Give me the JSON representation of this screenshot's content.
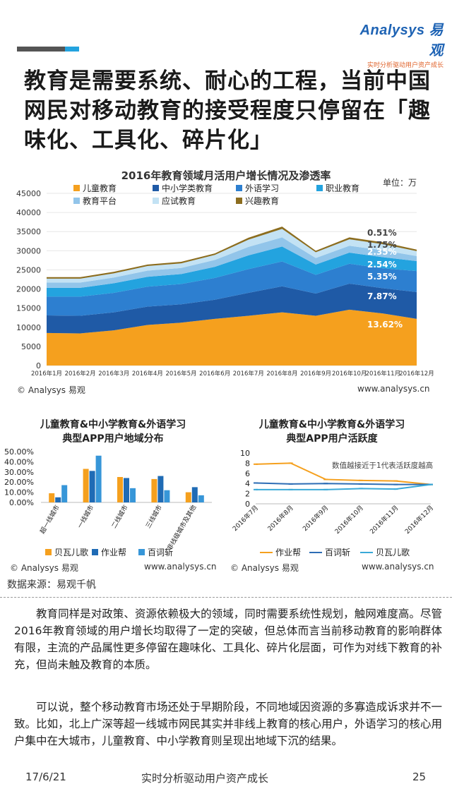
{
  "brand": {
    "logo": "Analysys 易观",
    "tagline": "实时分析驱动用户资产成长"
  },
  "title": "教育是需要系统、耐心的工程，当前中国网民对移动教育的接受程度只停留在「趣味化、工具化、碎片化」",
  "chart1": {
    "unit_label": "单位：万",
    "source_left": "© Analysys 易观",
    "source_right": "www.analysys.cn"
  },
  "chart2": {
    "title_line1": "儿童教育&中小学教育&外语学习",
    "title_line2": "典型APP用户地域分布",
    "source_left": "© Analysys 易观",
    "source_right": "www.analysys.cn"
  },
  "chart3": {
    "title_line1": "儿童教育&中小学教育&外语学习",
    "title_line2": "典型APP用户活跃度",
    "source_left": "© Analysys 易观",
    "source_right": "www.analysys.cn"
  },
  "data_source": "数据来源：易观千帆",
  "paragraphs": [
    "教育同样是对政策、资源依赖极大的领域，同时需要系统性规划，触网难度高。尽管2016年教育领域的用户增长均取得了一定的突破，但总体而言当前移动教育的影响群体有限，主流的产品属性更多停留在趣味化、工具化、碎片化层面，可作为对线下教育的补充，但尚未触及教育的本质。",
    "可以说，整个移动教育市场还处于早期阶段，不同地域因资源的多寡造成诉求并不一致。比如，北上广深等超一线城市网民其实并非线上教育的核心用户，外语学习的核心用户集中在大城市，儿童教育、中小学教育则呈现出地域下沉的结果。"
  ],
  "footer": {
    "date": "17/6/21",
    "center": "实时分析驱动用户资产成长",
    "page": "25"
  },
  "chart_data": [
    {
      "type": "area",
      "title": "2016年教育领域月活用户增长情况及渗透率",
      "x": [
        "2016年1月",
        "2016年2月",
        "2016年3月",
        "2016年4月",
        "2016年5月",
        "2016年6月",
        "2016年7月",
        "2016年8月",
        "2016年9月",
        "2016年10月",
        "2016年11月",
        "2016年12月"
      ],
      "ylim": [
        0,
        45000
      ],
      "yticks": [
        0,
        5000,
        10000,
        15000,
        20000,
        25000,
        30000,
        35000,
        40000,
        45000
      ],
      "stacked": true,
      "legend_position": "top",
      "series": [
        {
          "name": "儿童教育",
          "color": "#f5a01e",
          "values": [
            8500,
            8400,
            9200,
            10600,
            11200,
            12200,
            13000,
            13900,
            13000,
            14600,
            13600,
            12200
          ]
        },
        {
          "name": "中小学类教育",
          "color": "#1f5aa6",
          "values": [
            4600,
            4600,
            4700,
            4800,
            4800,
            5000,
            6000,
            6800,
            5800,
            6800,
            6600,
            7000
          ]
        },
        {
          "name": "外语学习",
          "color": "#2d7fd0",
          "values": [
            4900,
            5000,
            5100,
            5200,
            5300,
            5700,
            6200,
            6500,
            4900,
            5200,
            5200,
            5500
          ]
        },
        {
          "name": "职业教育",
          "color": "#23a3df",
          "values": [
            2300,
            2300,
            2500,
            2600,
            2600,
            2900,
            3600,
            3900,
            2700,
            2900,
            2900,
            2600
          ]
        },
        {
          "name": "教育平台",
          "color": "#92c5ea",
          "values": [
            1400,
            1400,
            1500,
            1600,
            1600,
            1800,
            2200,
            2400,
            1700,
            1800,
            1800,
            1300
          ]
        },
        {
          "name": "应试教育",
          "color": "#c3e2f4",
          "values": [
            1000,
            1000,
            1100,
            1200,
            1200,
            1300,
            1900,
            2200,
            1500,
            1700,
            1600,
            1300
          ]
        },
        {
          "name": "兴趣教育",
          "color": "#8c6d1f",
          "values": [
            400,
            400,
            400,
            400,
            400,
            400,
            500,
            600,
            400,
            500,
            500,
            400
          ]
        }
      ],
      "annotations": [
        "0.51%",
        "1.75%",
        "2.35%",
        "2.54%",
        "5.35%",
        "7.87%",
        "13.62%"
      ]
    },
    {
      "type": "bar",
      "categories": [
        "超一线城市",
        "一线城市",
        "二线城市",
        "三线城市",
        "非线级城市及其他"
      ],
      "ylim": [
        0,
        0.5
      ],
      "yticks": [
        "0.00%",
        "10.00%",
        "20.00%",
        "30.00%",
        "40.00%",
        "50.00%"
      ],
      "series": [
        {
          "name": "贝瓦儿歌",
          "color": "#f5a01e",
          "values": [
            0.09,
            0.33,
            0.25,
            0.23,
            0.1
          ]
        },
        {
          "name": "作业帮",
          "color": "#1f6bb5",
          "values": [
            0.05,
            0.31,
            0.24,
            0.26,
            0.15
          ]
        },
        {
          "name": "百词斩",
          "color": "#3796d8",
          "values": [
            0.17,
            0.46,
            0.14,
            0.12,
            0.07
          ]
        }
      ]
    },
    {
      "type": "line",
      "x": [
        "2016年7月",
        "2016年8月",
        "2016年9月",
        "2016年10月",
        "2016年11月",
        "2016年12月"
      ],
      "ylim": [
        0,
        10
      ],
      "yticks": [
        0,
        2,
        4,
        6,
        8,
        10
      ],
      "annotation": "数值越接近于1代表活跃度越高",
      "series": [
        {
          "name": "作业帮",
          "color": "#f5a01e",
          "values": [
            7.8,
            8.0,
            4.8,
            4.6,
            4.5,
            3.8
          ]
        },
        {
          "name": "百词斩",
          "color": "#2d6db5",
          "values": [
            4.1,
            3.9,
            4.0,
            3.9,
            3.8,
            3.8
          ]
        },
        {
          "name": "贝瓦儿歌",
          "color": "#39a9d8",
          "values": [
            2.8,
            2.8,
            2.8,
            3.0,
            2.9,
            3.8
          ]
        }
      ]
    }
  ]
}
